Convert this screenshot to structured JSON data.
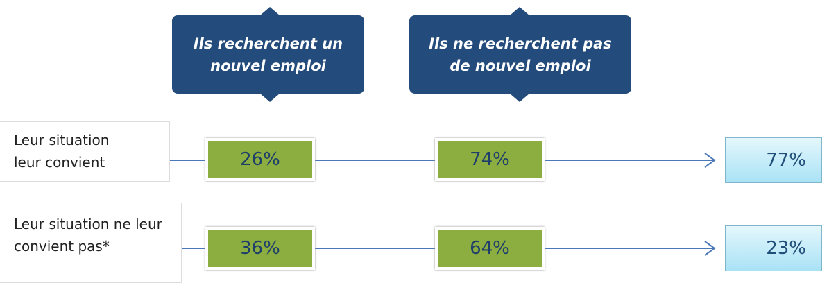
{
  "headers": [
    "Ils recherchent un nouvel emploi",
    "Ils ne recherchent pas de nouvel emploi"
  ],
  "rows": [
    {
      "label": "Leur situation leur convient",
      "values": [
        "26%",
        "74%"
      ],
      "total": "77%"
    },
    {
      "label": "Leur situation ne leur convient pas*",
      "values": [
        "36%",
        "64%"
      ],
      "total": "23%"
    }
  ]
}
